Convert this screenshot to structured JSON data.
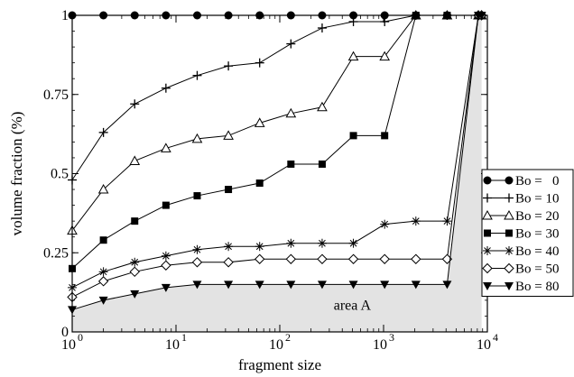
{
  "chart_data": {
    "type": "line",
    "xlabel": "fragment size",
    "ylabel": "volume fraction (%)",
    "xscale": "log",
    "xlim": [
      1,
      10000
    ],
    "ylim": [
      0,
      1
    ],
    "x_ticks": [
      {
        "value": 1,
        "mantissa": "10",
        "exp": "0"
      },
      {
        "value": 10,
        "mantissa": "10",
        "exp": "1"
      },
      {
        "value": 100,
        "mantissa": "10",
        "exp": "2"
      },
      {
        "value": 1000,
        "mantissa": "10",
        "exp": "3"
      },
      {
        "value": 10000,
        "mantissa": "10",
        "exp": "4"
      }
    ],
    "y_ticks": [
      {
        "value": 0,
        "label": "0"
      },
      {
        "value": 0.25,
        "label": "0.25"
      },
      {
        "value": 0.5,
        "label": "0.5"
      },
      {
        "value": 0.75,
        "label": "0.75"
      },
      {
        "value": 1,
        "label": "1"
      }
    ],
    "grid": false,
    "legend_position": "right",
    "annotation": {
      "text": "area A",
      "x": 500,
      "y": 0.07
    },
    "shaded_region_color": "#e3e3e3",
    "series": [
      {
        "name": "Bo =   0",
        "marker": "filled-circle",
        "x": [
          1,
          2,
          4,
          8,
          16,
          32,
          64,
          128,
          256,
          512,
          1024,
          2048,
          4096,
          8192,
          8800
        ],
        "y": [
          1,
          1,
          1,
          1,
          1,
          1,
          1,
          1,
          1,
          1,
          1,
          1,
          1,
          1,
          1
        ]
      },
      {
        "name": "Bo = 10",
        "marker": "plus",
        "x": [
          1,
          2,
          4,
          8,
          16,
          32,
          64,
          128,
          256,
          512,
          1024,
          2048,
          4096,
          8192,
          8800
        ],
        "y": [
          0.48,
          0.63,
          0.72,
          0.77,
          0.81,
          0.84,
          0.85,
          0.91,
          0.96,
          0.98,
          0.98,
          1,
          1,
          1,
          1
        ]
      },
      {
        "name": "Bo = 20",
        "marker": "open-triangle",
        "x": [
          1,
          2,
          4,
          8,
          16,
          32,
          64,
          128,
          256,
          512,
          1024,
          2048,
          4096,
          8192,
          8800
        ],
        "y": [
          0.32,
          0.45,
          0.54,
          0.58,
          0.61,
          0.62,
          0.66,
          0.69,
          0.71,
          0.87,
          0.87,
          1,
          1,
          1,
          1
        ]
      },
      {
        "name": "Bo = 30",
        "marker": "filled-square",
        "x": [
          1,
          2,
          4,
          8,
          16,
          32,
          64,
          128,
          256,
          512,
          1024,
          2048,
          4096,
          8192,
          8800
        ],
        "y": [
          0.2,
          0.29,
          0.35,
          0.4,
          0.43,
          0.45,
          0.47,
          0.53,
          0.53,
          0.62,
          0.62,
          1,
          1,
          1,
          1
        ]
      },
      {
        "name": "Bo = 40",
        "marker": "asterisk",
        "x": [
          1,
          2,
          4,
          8,
          16,
          32,
          64,
          128,
          256,
          512,
          1024,
          2048,
          4096,
          8192,
          8800
        ],
        "y": [
          0.14,
          0.19,
          0.22,
          0.24,
          0.26,
          0.27,
          0.27,
          0.28,
          0.28,
          0.28,
          0.34,
          0.35,
          0.35,
          1,
          1
        ]
      },
      {
        "name": "Bo = 50",
        "marker": "open-diamond",
        "x": [
          1,
          2,
          4,
          8,
          16,
          32,
          64,
          128,
          256,
          512,
          1024,
          2048,
          4096,
          8192,
          8800
        ],
        "y": [
          0.11,
          0.16,
          0.19,
          0.21,
          0.22,
          0.22,
          0.23,
          0.23,
          0.23,
          0.23,
          0.23,
          0.23,
          0.23,
          1,
          1
        ]
      },
      {
        "name": "Bo = 80",
        "marker": "filled-triangle-down",
        "x": [
          1,
          2,
          4,
          8,
          16,
          32,
          64,
          128,
          256,
          512,
          1024,
          2048,
          4096,
          8192,
          8800
        ],
        "y": [
          0.07,
          0.1,
          0.12,
          0.14,
          0.15,
          0.15,
          0.15,
          0.15,
          0.15,
          0.15,
          0.15,
          0.15,
          0.15,
          1,
          1
        ]
      }
    ]
  }
}
